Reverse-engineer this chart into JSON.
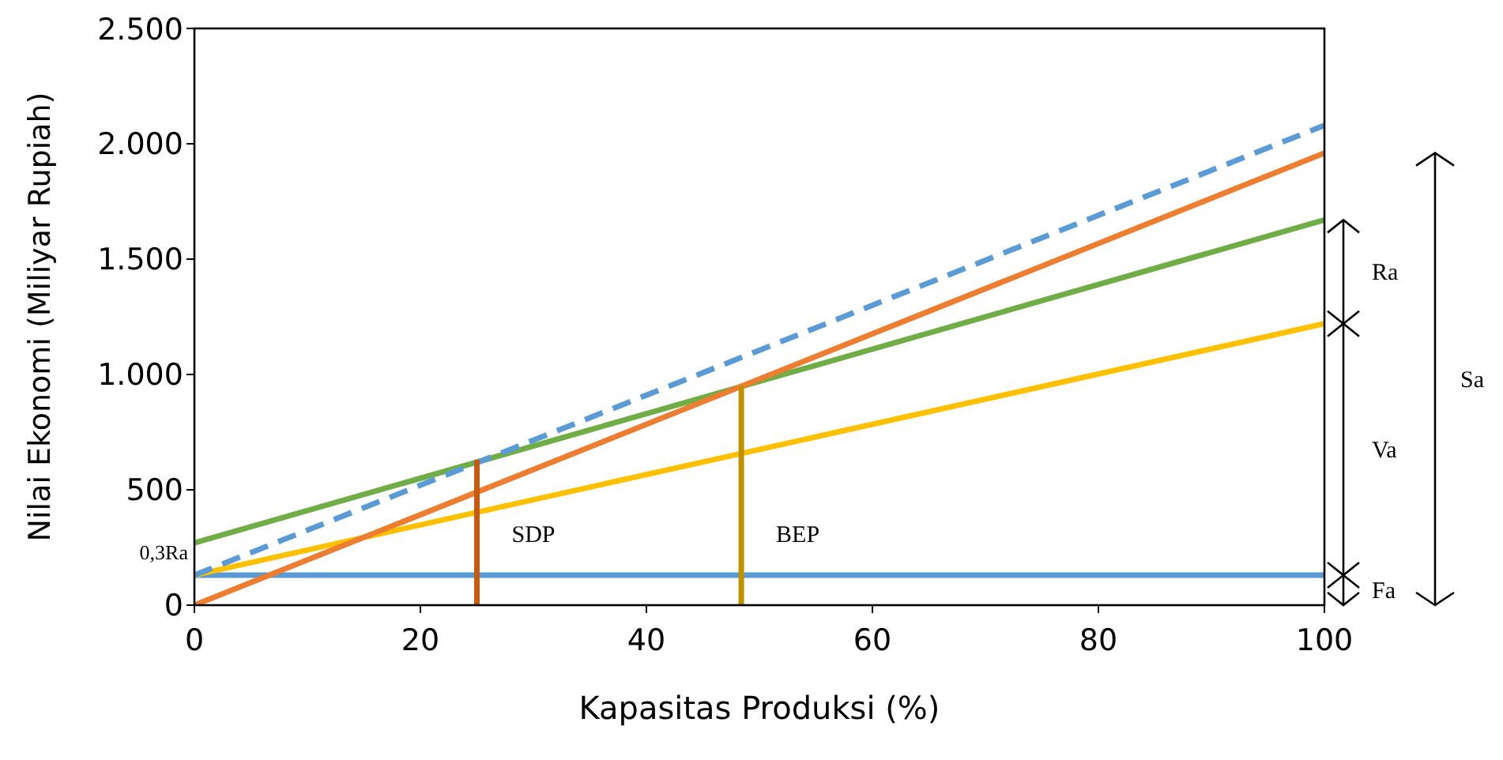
{
  "chart_data": {
    "type": "line",
    "xlabel": "Kapasitas Produksi (%)",
    "ylabel": "Nilai Ekonomi (Miliyar Rupiah)",
    "xlim": [
      0,
      100
    ],
    "xticks": [
      0,
      20,
      40,
      60,
      80,
      100
    ],
    "ylim": [
      0,
      2500
    ],
    "yticks": [
      {
        "value": 0,
        "label": "0"
      },
      {
        "value": 500,
        "label": "500"
      },
      {
        "value": 1000,
        "label": "1.000"
      },
      {
        "value": 1500,
        "label": "1.500"
      },
      {
        "value": 2000,
        "label": "2.000"
      },
      {
        "value": 2500,
        "label": "2.500"
      }
    ],
    "grid": false,
    "legend": false,
    "marker": "none",
    "series": [
      {
        "color": "#5b9bd5",
        "x": [
          0,
          100
        ],
        "values": [
          130,
          130
        ]
      },
      {
        "color": "#ffc000",
        "x": [
          0,
          100
        ],
        "values": [
          130,
          1220
        ]
      },
      {
        "color": "#70ad47",
        "x": [
          0,
          100
        ],
        "values": [
          270,
          1670
        ]
      },
      {
        "color": "#ed7d31",
        "x": [
          0,
          100
        ],
        "values": [
          0,
          1960
        ]
      },
      {
        "color": "#5b9bd5",
        "line_style": "dashed",
        "x": [
          0,
          100
        ],
        "values": [
          130,
          2080
        ]
      },
      {
        "name": "SDP",
        "color": "#c55a11",
        "x": [
          25,
          25
        ],
        "values": [
          0,
          630
        ]
      },
      {
        "name": "BEP",
        "color": "#bf9000",
        "x": [
          48.4,
          48.4
        ],
        "values": [
          0,
          950
        ]
      }
    ],
    "annotations": [
      "0,3Ra",
      "Fa",
      "Va",
      "Ra",
      "Sa"
    ]
  }
}
